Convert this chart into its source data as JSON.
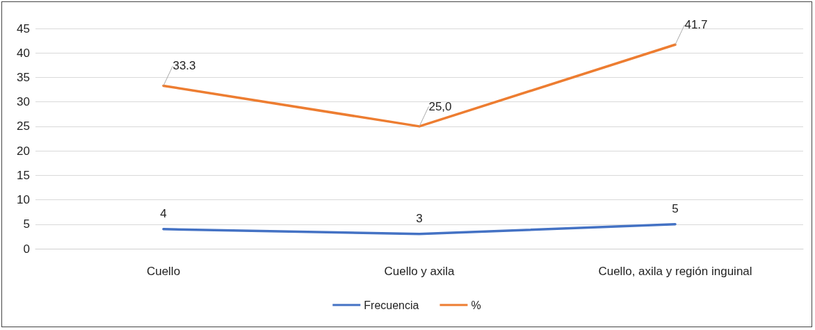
{
  "chart_data": {
    "type": "line",
    "categories": [
      "Cuello",
      "Cuello y axila",
      "Cuello, axila y región inguinal"
    ],
    "series": [
      {
        "name": "Frecuencia",
        "color": "#4472c4",
        "values": [
          4,
          3,
          5
        ],
        "value_labels": [
          "4",
          "3",
          "5"
        ]
      },
      {
        "name": "%",
        "color": "#ed7d31",
        "values": [
          33.3,
          25.0,
          41.7
        ],
        "value_labels": [
          "33.3",
          "25,0",
          "41.7"
        ]
      }
    ],
    "ylim": [
      0,
      45
    ],
    "yticks": [
      0,
      5,
      10,
      15,
      20,
      25,
      30,
      35,
      40,
      45
    ],
    "grid": "y",
    "legend": "bottom",
    "marker": "none",
    "line_style": "solid"
  }
}
